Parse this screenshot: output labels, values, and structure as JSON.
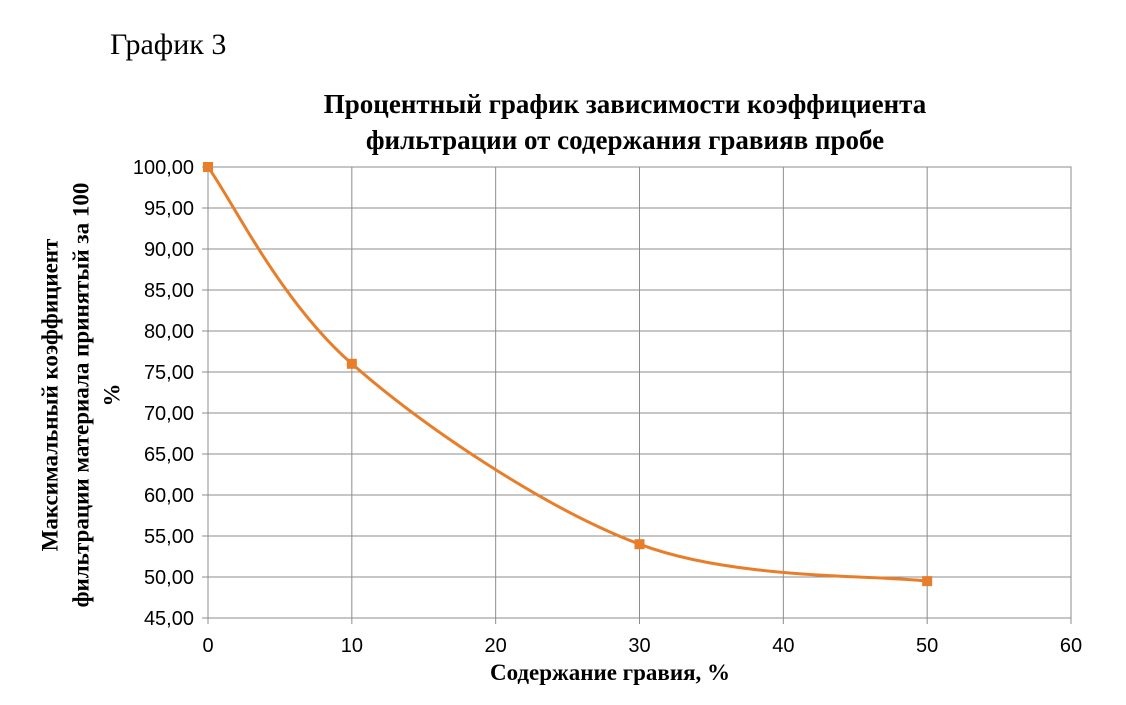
{
  "caption": "График 3",
  "chart_data": {
    "type": "line",
    "title_lines": [
      "Процентный график зависимости коэффициента",
      "фильтрации от содержания гравияв пробе"
    ],
    "xlabel": "Содержание гравия, %",
    "ylabel_lines": [
      "Максимальный коэффициент",
      "фильтрации материала принятый за 100",
      "%"
    ],
    "x": [
      0,
      10,
      30,
      50
    ],
    "series": [
      {
        "values": [
          100,
          76,
          54,
          49.5
        ]
      }
    ],
    "xlim": [
      0,
      60
    ],
    "ylim": [
      45,
      100
    ],
    "x_ticks": [
      "0",
      "10",
      "20",
      "30",
      "40",
      "50",
      "60"
    ],
    "y_ticks": [
      "45,00",
      "50,00",
      "55,00",
      "60,00",
      "65,00",
      "70,00",
      "75,00",
      "80,00",
      "85,00",
      "90,00",
      "95,00",
      "100,00"
    ],
    "grid": true,
    "smooth": true,
    "marker": "square",
    "color": "#E87E2A"
  }
}
